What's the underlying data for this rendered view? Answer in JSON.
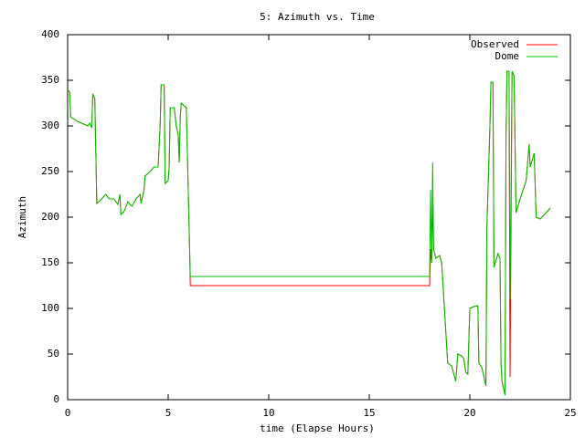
{
  "chart_data": {
    "type": "line",
    "title": "5: Azimuth vs. Time",
    "x_label": "time (Elapse Hours)",
    "y_label": "Azimuth",
    "x": [
      0,
      0.1,
      0.15,
      0.5,
      1.0,
      1.1,
      1.2,
      1.25,
      1.35,
      1.45,
      1.6,
      1.9,
      2.0,
      2.1,
      2.3,
      2.5,
      2.6,
      2.65,
      2.8,
      3.0,
      3.1,
      3.2,
      3.4,
      3.6,
      3.65,
      3.8,
      3.85,
      4.1,
      4.3,
      4.5,
      4.6,
      4.65,
      4.8,
      4.85,
      5.0,
      5.05,
      5.1,
      5.3,
      5.4,
      5.5,
      5.55,
      5.6,
      5.65,
      5.9,
      5.95,
      6.05,
      6.1,
      18.0,
      18.05,
      18.1,
      18.15,
      18.2,
      18.3,
      18.5,
      18.6,
      18.9,
      19.1,
      19.3,
      19.4,
      19.6,
      19.7,
      19.8,
      19.9,
      20.0,
      20.2,
      20.4,
      20.45,
      20.6,
      20.8,
      20.85,
      21.0,
      21.05,
      21.15,
      21.2,
      21.4,
      21.5,
      21.55,
      21.6,
      21.7,
      21.75,
      21.8,
      21.85,
      21.95,
      22.0,
      22.1,
      22.2,
      22.3,
      22.5,
      22.8,
      22.95,
      23.0,
      23.2,
      23.3,
      23.5,
      23.8,
      24.0
    ],
    "series": [
      {
        "name": "Observed",
        "color": "#ff0000",
        "values": [
          340,
          337,
          310,
          305,
          300,
          303,
          298,
          335,
          330,
          215,
          218,
          225,
          222,
          220,
          220,
          214,
          225,
          203,
          206,
          217,
          214,
          212,
          220,
          225,
          215,
          230,
          245,
          250,
          255,
          255,
          300,
          345,
          345,
          237,
          240,
          255,
          320,
          320,
          300,
          290,
          260,
          310,
          325,
          320,
          275,
          180,
          125,
          125,
          165,
          150,
          215,
          165,
          155,
          158,
          150,
          40,
          37,
          20,
          50,
          48,
          45,
          30,
          28,
          100,
          102,
          103,
          40,
          35,
          15,
          190,
          300,
          348,
          348,
          145,
          160,
          155,
          40,
          20,
          10,
          5,
          290,
          360,
          360,
          25,
          360,
          355,
          205,
          220,
          240,
          280,
          255,
          270,
          200,
          198,
          205,
          210
        ]
      },
      {
        "name": "Dome",
        "color": "#00c000",
        "values": [
          340,
          337,
          310,
          305,
          300,
          303,
          298,
          335,
          330,
          215,
          218,
          225,
          222,
          220,
          220,
          214,
          225,
          203,
          206,
          217,
          214,
          212,
          220,
          225,
          215,
          230,
          245,
          250,
          255,
          255,
          300,
          345,
          345,
          237,
          240,
          255,
          320,
          320,
          300,
          290,
          260,
          310,
          325,
          320,
          275,
          180,
          135,
          135,
          230,
          150,
          260,
          165,
          155,
          158,
          150,
          40,
          37,
          20,
          50,
          48,
          45,
          30,
          28,
          100,
          102,
          103,
          40,
          35,
          15,
          190,
          300,
          348,
          348,
          145,
          160,
          155,
          40,
          20,
          10,
          5,
          290,
          360,
          360,
          110,
          360,
          355,
          205,
          220,
          240,
          280,
          255,
          270,
          200,
          198,
          205,
          210
        ]
      }
    ],
    "xlim": [
      0,
      25
    ],
    "xticks": [
      0,
      5,
      10,
      15,
      20,
      25
    ],
    "ylim": [
      0,
      400
    ],
    "yticks": [
      0,
      50,
      100,
      150,
      200,
      250,
      300,
      350,
      400
    ],
    "legend": "top-right"
  }
}
